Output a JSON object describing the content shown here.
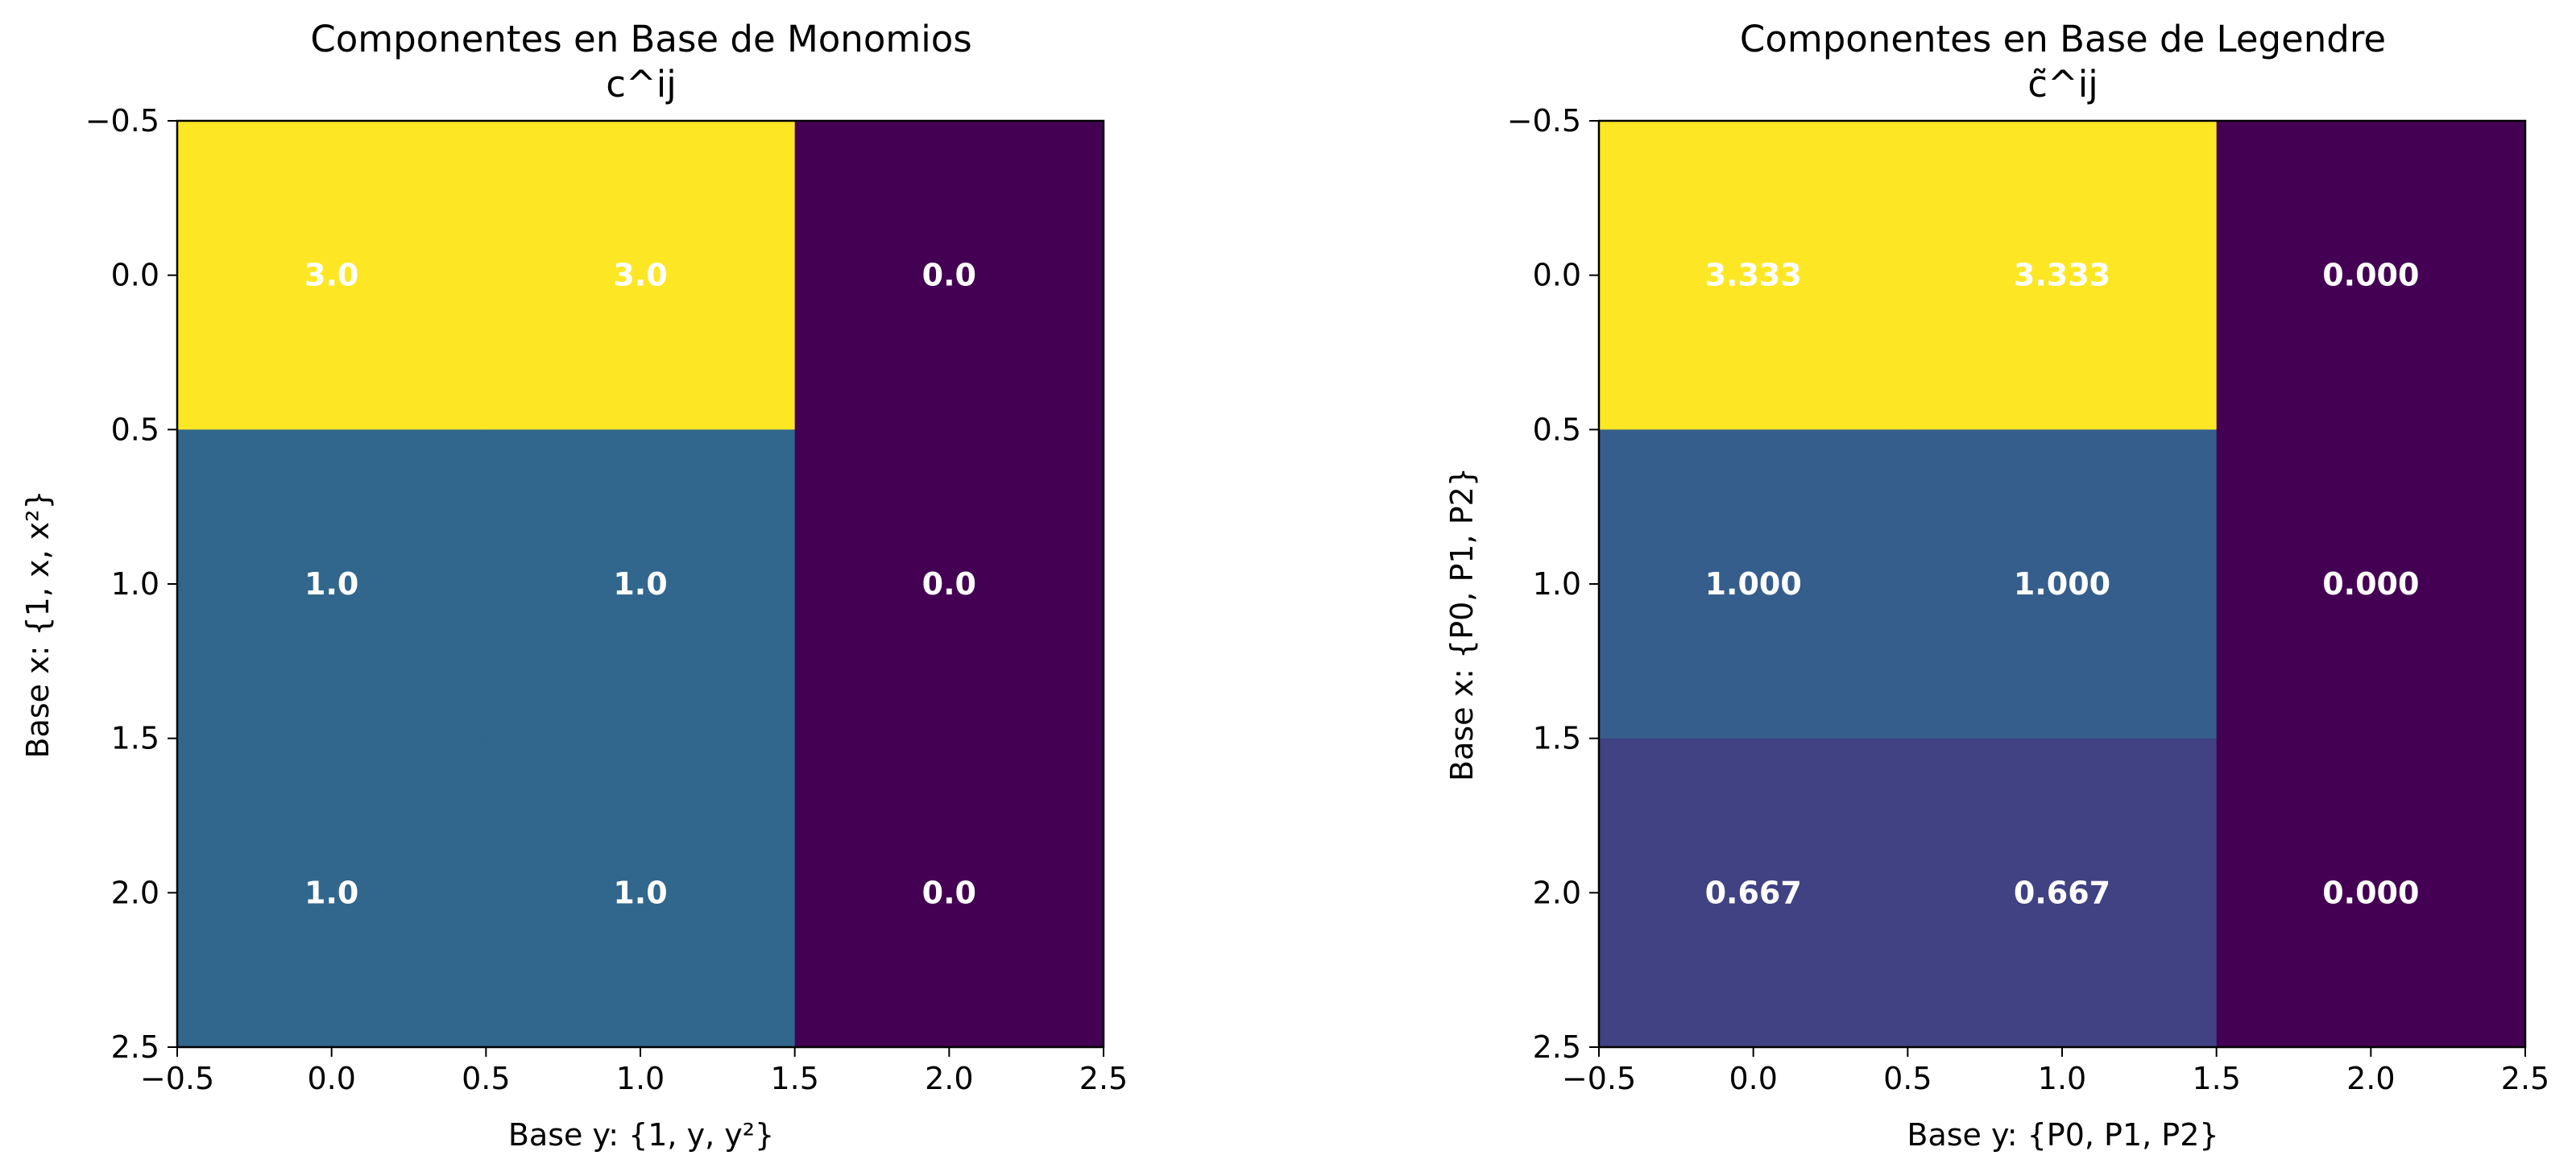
{
  "chart_data": [
    {
      "type": "heatmap",
      "title": "Componentes en Base de Monomios",
      "subtitle": "c^ij",
      "xlabel": "Base y: {1, y, y²}",
      "ylabel": "Base x: {1, x, x²}",
      "xlim": [
        -0.5,
        2.5
      ],
      "ylim": [
        2.5,
        -0.5
      ],
      "xticks": [
        "−0.5",
        "0.0",
        "0.5",
        "1.0",
        "1.5",
        "2.0",
        "2.5"
      ],
      "yticks": [
        "−0.5",
        "0.0",
        "0.5",
        "1.0",
        "1.5",
        "2.0",
        "2.5"
      ],
      "values": [
        [
          3.0,
          3.0,
          0.0
        ],
        [
          1.0,
          1.0,
          0.0
        ],
        [
          1.0,
          1.0,
          0.0
        ]
      ],
      "labels": [
        [
          "3.0",
          "3.0",
          "0.0"
        ],
        [
          "1.0",
          "1.0",
          "0.0"
        ],
        [
          "1.0",
          "1.0",
          "0.0"
        ]
      ],
      "colormap": "viridis",
      "vmin": 0.0,
      "vmax": 3.0,
      "grid": false
    },
    {
      "type": "heatmap",
      "title": "Componentes en Base de Legendre",
      "subtitle": "c̃^ij",
      "xlabel": "Base y: {P0, P1, P2}",
      "ylabel": "Base x: {P0, P1, P2}",
      "xlim": [
        -0.5,
        2.5
      ],
      "ylim": [
        2.5,
        -0.5
      ],
      "xticks": [
        "−0.5",
        "0.0",
        "0.5",
        "1.0",
        "1.5",
        "2.0",
        "2.5"
      ],
      "yticks": [
        "−0.5",
        "0.0",
        "0.5",
        "1.0",
        "1.5",
        "2.0",
        "2.5"
      ],
      "values": [
        [
          3.333,
          3.333,
          0.0
        ],
        [
          1.0,
          1.0,
          0.0
        ],
        [
          0.667,
          0.667,
          0.0
        ]
      ],
      "labels": [
        [
          "3.333",
          "3.333",
          "0.000"
        ],
        [
          "1.000",
          "1.000",
          "0.000"
        ],
        [
          "0.667",
          "0.667",
          "0.000"
        ]
      ],
      "colormap": "viridis",
      "vmin": 0.0,
      "vmax": 3.333,
      "grid": false
    }
  ]
}
